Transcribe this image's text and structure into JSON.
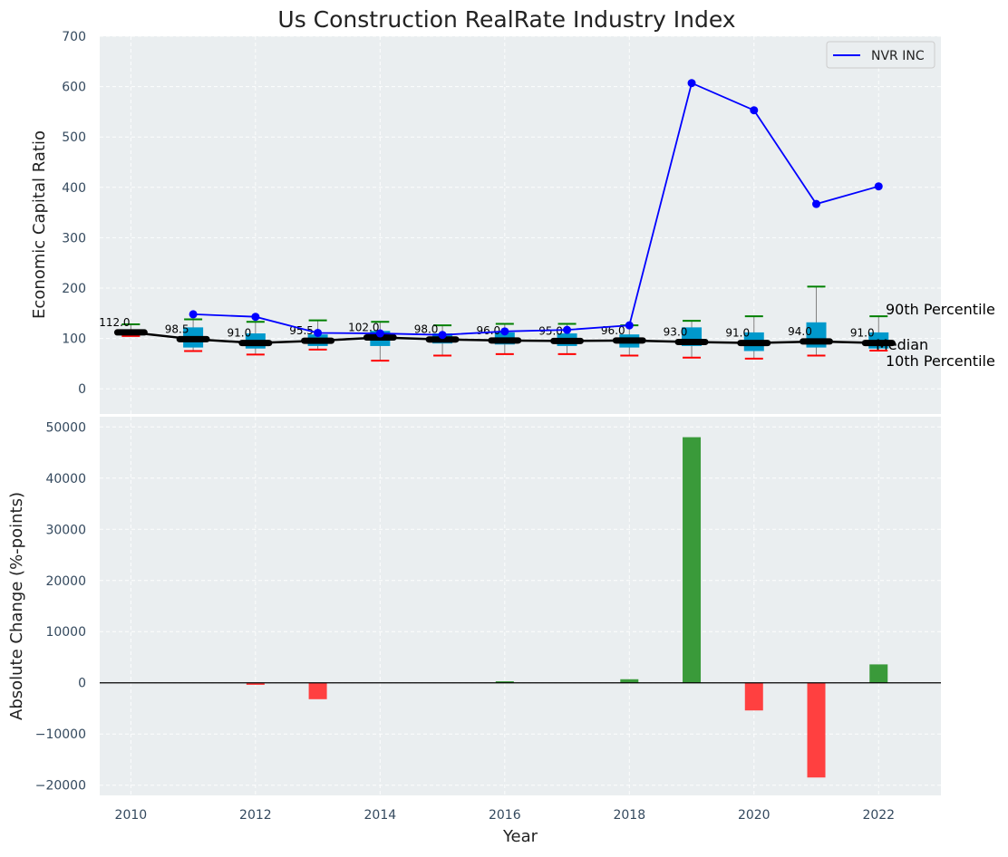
{
  "chart_data": [
    {
      "type": "box-line",
      "title": "Us Construction RealRate Industry Index",
      "ylabel": "Economic Capital Ratio",
      "xlim": [
        2009.5,
        2023
      ],
      "ylim": [
        -50,
        700
      ],
      "yticks": [
        0,
        100,
        200,
        300,
        400,
        500,
        600,
        700
      ],
      "grid": true,
      "legend_position": "top-right",
      "legend": [
        {
          "label": "NVR INC",
          "color": "#0000ff"
        }
      ],
      "years": [
        2010,
        2011,
        2012,
        2013,
        2014,
        2015,
        2016,
        2017,
        2018,
        2019,
        2020,
        2021,
        2022
      ],
      "median": [
        112.0,
        98.5,
        91.0,
        95.5,
        102.0,
        98.0,
        96.0,
        95.0,
        96.0,
        93.0,
        91.0,
        94.0,
        91.0
      ],
      "median_labels": [
        "112.0",
        "98.5",
        "91.0",
        "95.5",
        "102.0",
        "98.0",
        "96.0",
        "95.0",
        "96.0",
        "93.0",
        "91.0",
        "94.0",
        "91.0"
      ],
      "q1": [
        108,
        82,
        80,
        85,
        85,
        90,
        88,
        85,
        82,
        85,
        75,
        82,
        80
      ],
      "q3": [
        118,
        122,
        110,
        108,
        115,
        110,
        112,
        110,
        108,
        122,
        112,
        132,
        112
      ],
      "p90": [
        128,
        138,
        133,
        136,
        133,
        126,
        129,
        129,
        126,
        135,
        144,
        203,
        144
      ],
      "p10": [
        105,
        75,
        68,
        78,
        56,
        66,
        69,
        69,
        66,
        62,
        60,
        66,
        76
      ],
      "series": [
        {
          "name": "NVR INC",
          "color": "#0000ff",
          "x": [
            2011,
            2012,
            2013,
            2014,
            2015,
            2016,
            2017,
            2018,
            2019,
            2020,
            2021,
            2022
          ],
          "values": [
            148,
            143,
            111,
            110,
            107,
            114,
            117,
            126,
            607,
            553,
            367,
            402
          ]
        }
      ],
      "annotations": [
        "90th Percentile",
        "Median",
        "10th Percentile"
      ],
      "colors": {
        "box": "#0099cc",
        "median": "#000000",
        "p90": "#008000",
        "p10": "#ff0000",
        "whisker": "#808080"
      }
    },
    {
      "type": "bar",
      "ylabel": "Absolute Change (%-points)",
      "xlabel": "Year",
      "xlim": [
        2009.5,
        2023
      ],
      "ylim": [
        -22000,
        52000
      ],
      "yticks": [
        -20000,
        -10000,
        0,
        10000,
        20000,
        30000,
        40000,
        50000
      ],
      "ytick_labels": [
        "−20000",
        "−10000",
        "0",
        "10000",
        "20000",
        "30000",
        "40000",
        "50000"
      ],
      "xticks": [
        2010,
        2012,
        2014,
        2016,
        2018,
        2020,
        2022
      ],
      "grid": true,
      "categories": [
        2012,
        2013,
        2016,
        2018,
        2019,
        2020,
        2021,
        2022
      ],
      "values": [
        -400,
        -3200,
        300,
        700,
        48000,
        -5400,
        -18500,
        3600
      ],
      "colors": {
        "positive": "#3a9a3a",
        "negative": "#ff4040"
      }
    }
  ]
}
